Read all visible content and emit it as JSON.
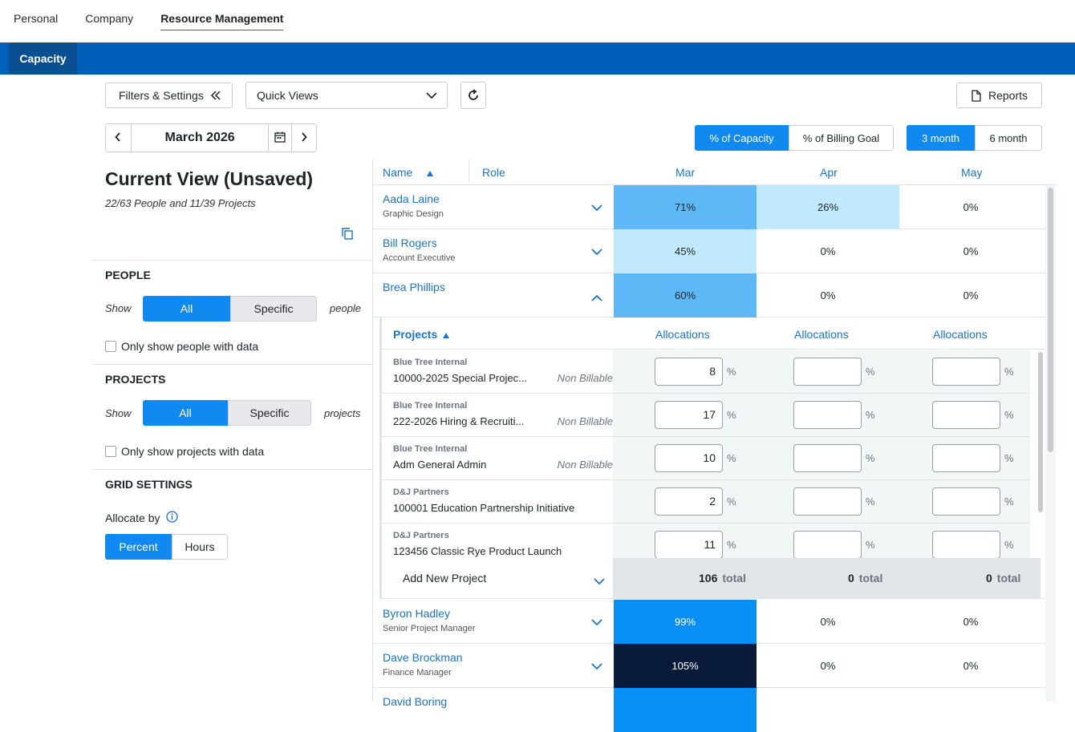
{
  "top_nav": [
    "Personal",
    "Company",
    "Resource Management"
  ],
  "sub_tab": "Capacity",
  "toolbar": {
    "filters_label": "Filters & Settings",
    "quick_views_label": "Quick Views",
    "reports_label": "Reports",
    "month_label": "March 2026",
    "capacity_mode": [
      "% of Capacity",
      "% of Billing Goal"
    ],
    "range_mode": [
      "3 month",
      "6 month"
    ]
  },
  "left": {
    "title": "Current View (Unsaved)",
    "subtitle": "22/63 People and 11/39 Projects",
    "people_heading": "PEOPLE",
    "show_label": "Show",
    "all_label": "All",
    "specific_label": "Specific",
    "people_suffix": "people",
    "people_check": "Only show people with data",
    "projects_heading": "PROJECTS",
    "projects_suffix": "projects",
    "projects_check": "Only show projects with data",
    "grid_heading": "GRID SETTINGS",
    "allocate_by": "Allocate by",
    "allocate_options": [
      "Percent",
      "Hours"
    ]
  },
  "grid": {
    "headers": {
      "name": "Name",
      "role": "Role",
      "months": [
        "Mar",
        "Apr",
        "May"
      ]
    },
    "people": [
      {
        "name": "Aada Laine",
        "role": "Graphic Design",
        "values": [
          "71%",
          "26%",
          "0%"
        ]
      },
      {
        "name": "Bill Rogers",
        "role": "Account Executive",
        "values": [
          "45%",
          "0%",
          "0%"
        ]
      },
      {
        "name": "Brea Phillips",
        "role": "",
        "values": [
          "60%",
          "0%",
          "0%"
        ]
      },
      {
        "name": "Byron Hadley",
        "role": "Senior Project Manager",
        "values": [
          "99%",
          "0%",
          "0%"
        ]
      },
      {
        "name": "Dave Brockman",
        "role": "Finance Manager",
        "values": [
          "105%",
          "0%",
          "0%"
        ]
      },
      {
        "name": "David Boring",
        "role": "",
        "values": [
          "",
          "",
          ""
        ]
      }
    ],
    "expanded": {
      "projects_label": "Projects",
      "alloc_label": "Allocations",
      "pct": "%",
      "projects": [
        {
          "client": "Blue Tree Internal",
          "title": "10000-2025 Special Projec...",
          "billing": "Non Billable",
          "alloc": [
            "8",
            "",
            ""
          ]
        },
        {
          "client": "Blue Tree Internal",
          "title": "222-2026 Hiring & Recruiti...",
          "billing": "Non Billable",
          "alloc": [
            "17",
            "",
            ""
          ]
        },
        {
          "client": "Blue Tree Internal",
          "title": "Adm General Admin",
          "billing": "Non Billable",
          "alloc": [
            "10",
            "",
            ""
          ]
        },
        {
          "client": "D&J Partners",
          "title": "100001 Education Partnership Initiative",
          "billing": "",
          "alloc": [
            "2",
            "",
            ""
          ]
        },
        {
          "client": "D&J Partners",
          "title": "123456 Classic Rye Product Launch",
          "billing": "",
          "alloc": [
            "11",
            "",
            ""
          ]
        }
      ],
      "add_new": "Add New Project",
      "totals": [
        "106",
        "0",
        "0"
      ],
      "total_word": "total"
    }
  },
  "colors": {
    "brand": "#005fb8",
    "accent": "#1089f0",
    "heat_low": "#c0e9fb",
    "heat_mid": "#5db8f5",
    "heat_high": "#0a8ff5",
    "heat_over": "#0a1a3a"
  }
}
